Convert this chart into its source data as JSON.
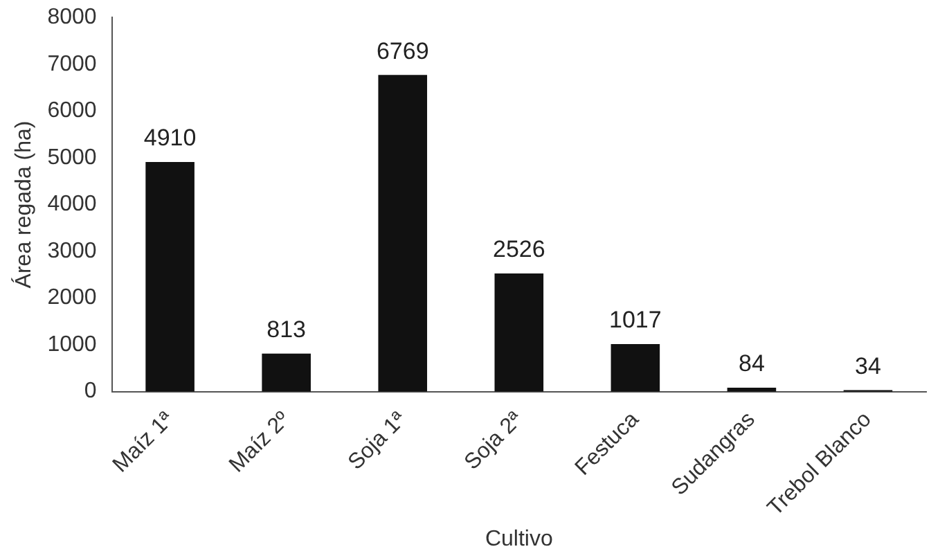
{
  "chart_data": {
    "type": "bar",
    "xlabel": "Cultivo",
    "ylabel": "Área regada (ha)",
    "categories": [
      "Maíz 1ª",
      "Maíz 2º",
      "Soja 1ª",
      "Soja 2ª",
      "Festuca",
      "Sudangras",
      "Trebol Blanco"
    ],
    "values": [
      4910,
      813,
      6769,
      2526,
      1017,
      84,
      34
    ],
    "color": "#111111",
    "ylim": [
      0,
      8000
    ],
    "yticks": [
      0,
      1000,
      2000,
      3000,
      4000,
      5000,
      6000,
      7000,
      8000
    ],
    "grid": false,
    "legend": false,
    "data_labels": true
  }
}
